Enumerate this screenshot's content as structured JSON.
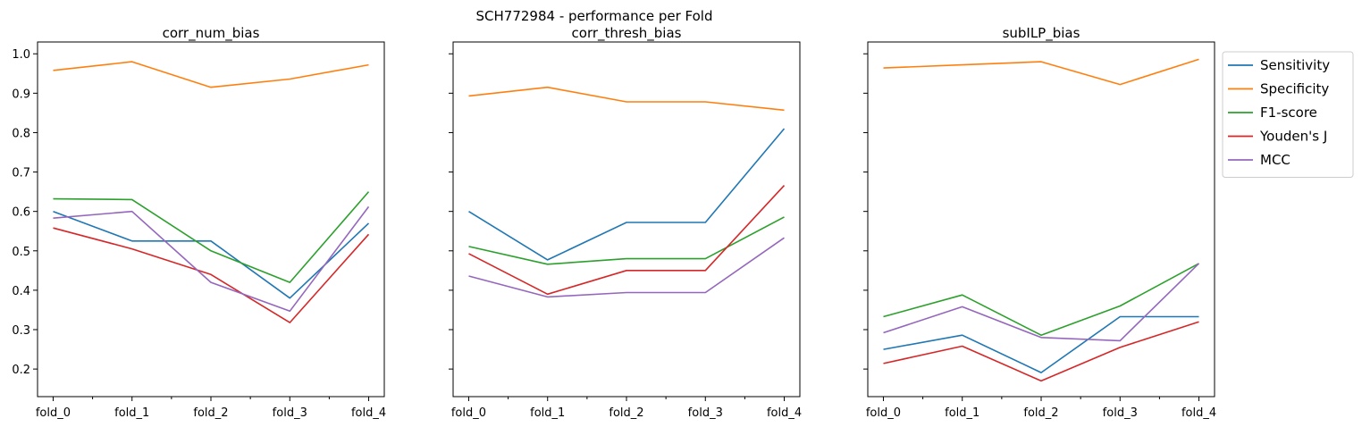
{
  "chart_data": {
    "type": "line",
    "title": "SCH772984 - performance per Fold",
    "categories": [
      "fold_0",
      "fold_1",
      "fold_2",
      "fold_3",
      "fold_4"
    ],
    "ylim": [
      0.13,
      1.03
    ],
    "yticks": [
      0.2,
      0.3,
      0.4,
      0.5,
      0.6,
      0.7,
      0.8,
      0.9,
      1.0
    ],
    "ytick_labels": [
      "0.2",
      "0.3",
      "0.4",
      "0.5",
      "0.6",
      "0.7",
      "0.8",
      "0.9",
      "1.0"
    ],
    "grid": false,
    "legend_placement": "outside right of last panel, top",
    "legend": [
      {
        "name": "Sensitivity",
        "color": "#1f77b4"
      },
      {
        "name": "Specificity",
        "color": "#ff7f0e"
      },
      {
        "name": "F1-score",
        "color": "#2ca02c"
      },
      {
        "name": "Youden's J",
        "color": "#d62728"
      },
      {
        "name": "MCC",
        "color": "#9467bd"
      }
    ],
    "panels": [
      {
        "title": "corr_num_bias",
        "series": [
          {
            "name": "Sensitivity",
            "values": [
              0.6,
              0.525,
              0.525,
              0.38,
              0.57
            ]
          },
          {
            "name": "Specificity",
            "values": [
              0.958,
              0.98,
              0.915,
              0.936,
              0.972
            ]
          },
          {
            "name": "F1-score",
            "values": [
              0.632,
              0.63,
              0.5,
              0.42,
              0.65
            ]
          },
          {
            "name": "Youden's J",
            "values": [
              0.558,
              0.505,
              0.44,
              0.318,
              0.542
            ]
          },
          {
            "name": "MCC",
            "values": [
              0.583,
              0.6,
              0.42,
              0.347,
              0.612
            ]
          }
        ]
      },
      {
        "title": "corr_thresh_bias",
        "series": [
          {
            "name": "Sensitivity",
            "values": [
              0.6,
              0.477,
              0.572,
              0.572,
              0.81
            ]
          },
          {
            "name": "Specificity",
            "values": [
              0.893,
              0.915,
              0.878,
              0.878,
              0.857
            ]
          },
          {
            "name": "F1-score",
            "values": [
              0.511,
              0.466,
              0.48,
              0.48,
              0.586
            ]
          },
          {
            "name": "Youden's J",
            "values": [
              0.493,
              0.39,
              0.45,
              0.45,
              0.666
            ]
          },
          {
            "name": "MCC",
            "values": [
              0.436,
              0.383,
              0.394,
              0.394,
              0.533
            ]
          }
        ]
      },
      {
        "title": "subILP_bias",
        "series": [
          {
            "name": "Sensitivity",
            "values": [
              0.25,
              0.286,
              0.191,
              0.333,
              0.333
            ]
          },
          {
            "name": "Specificity",
            "values": [
              0.964,
              0.972,
              0.98,
              0.922,
              0.986
            ]
          },
          {
            "name": "F1-score",
            "values": [
              0.333,
              0.388,
              0.286,
              0.36,
              0.468
            ]
          },
          {
            "name": "Youden's J",
            "values": [
              0.214,
              0.258,
              0.17,
              0.255,
              0.32
            ]
          },
          {
            "name": "MCC",
            "values": [
              0.292,
              0.358,
              0.28,
              0.272,
              0.468
            ]
          }
        ]
      }
    ]
  }
}
